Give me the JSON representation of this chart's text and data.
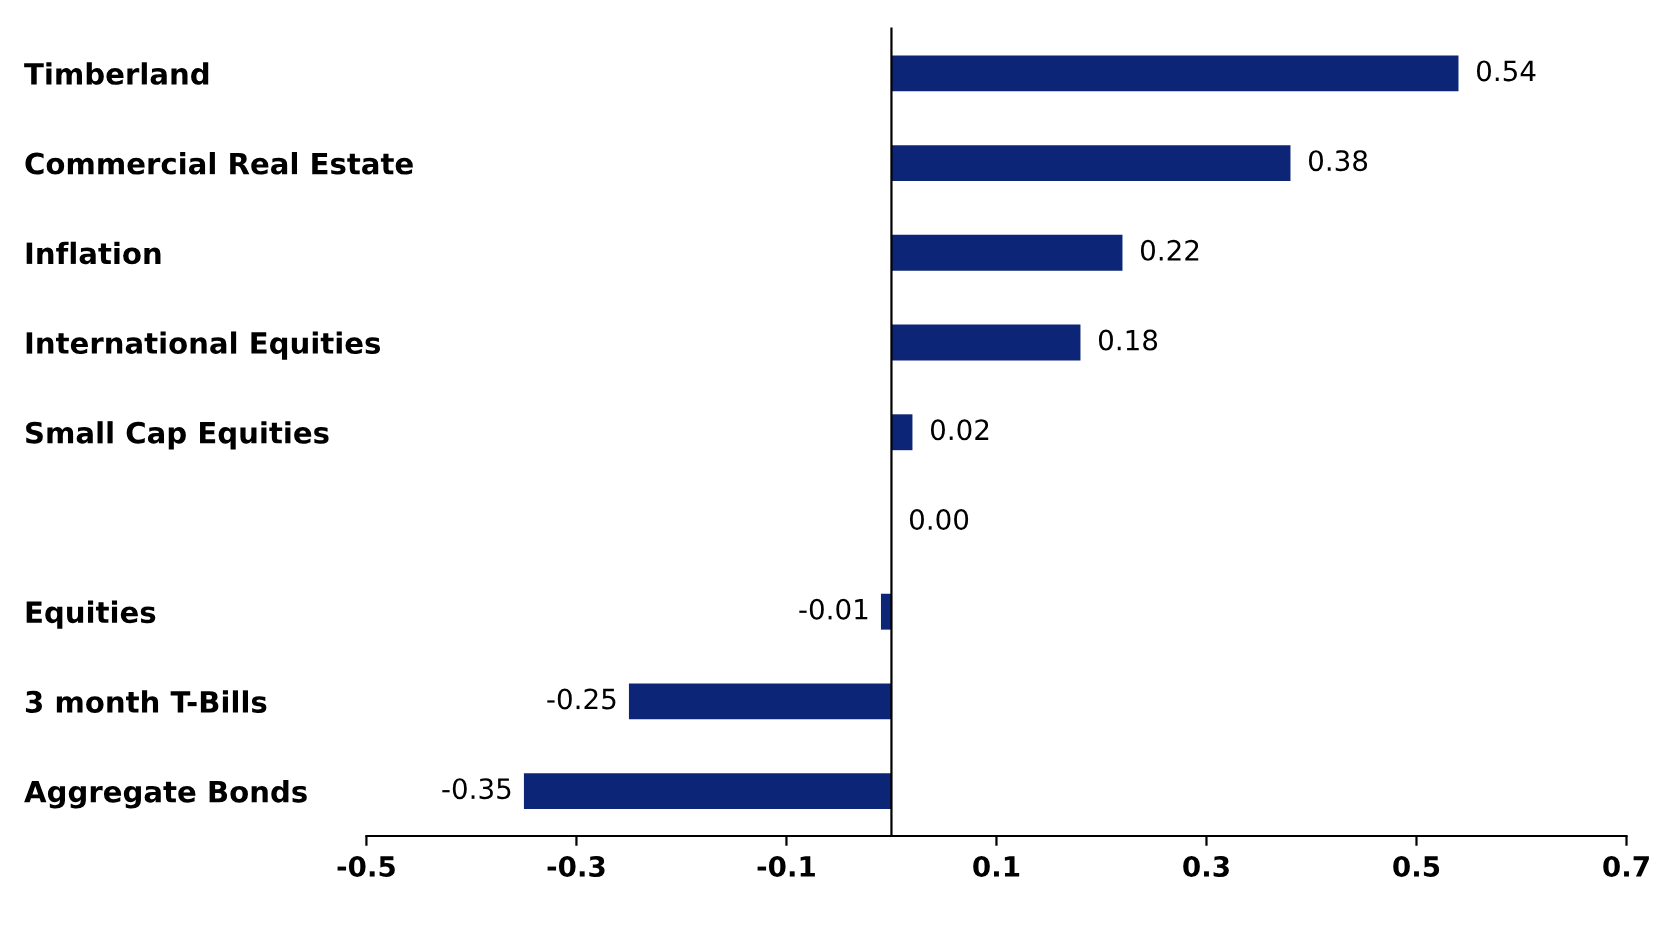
{
  "chart_data": {
    "type": "bar",
    "orientation": "horizontal",
    "categories": [
      "Timberland",
      "Commercial Real Estate",
      "Inflation",
      "International Equities",
      "Small Cap Equities",
      null,
      "Equities",
      "3 month T-Bills",
      "Aggregate Bonds"
    ],
    "values": [
      0.54,
      0.38,
      0.22,
      0.18,
      0.02,
      0.0,
      -0.01,
      -0.25,
      -0.35
    ],
    "value_labels": [
      "0.54",
      "0.38",
      "0.22",
      "0.18",
      "0.02",
      "0.00",
      "-0.01",
      "-0.25",
      "-0.35"
    ],
    "color": "#0c2577",
    "xlim": [
      -0.5,
      0.7
    ],
    "xticks": [
      -0.5,
      -0.3,
      -0.1,
      0.1,
      0.3,
      0.5,
      0.7
    ],
    "grid": false,
    "legend": false
  }
}
